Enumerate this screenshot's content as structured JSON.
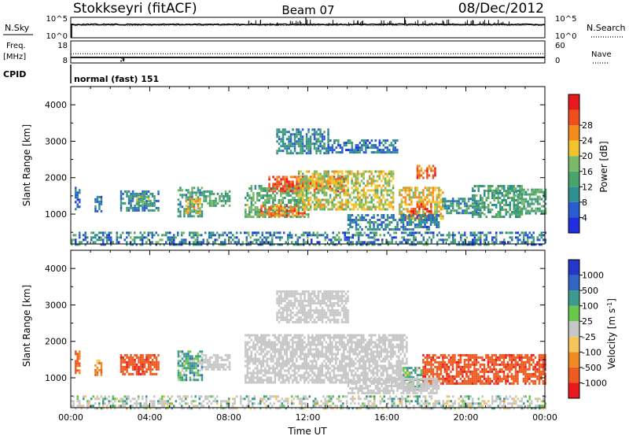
{
  "header": {
    "station": "Stokkseyri (fitACF)",
    "beam": "Beam 07",
    "date": "08/Dec/2012"
  },
  "chart_data": [
    {
      "type": "line",
      "panel": "noise",
      "left_label": "N.Sky",
      "right_label": "N.Search",
      "left_ticks": [
        "10^5",
        "10^0"
      ],
      "right_ticks": [
        "10^5",
        "10^0"
      ],
      "yscale": "log",
      "ylim": [
        1,
        100000
      ]
    },
    {
      "type": "line",
      "panel": "frequency",
      "left_label": "Freq.",
      "left_unit": "[MHz]",
      "right_label": "Nave",
      "left_ticks": [
        18,
        8
      ],
      "right_ticks": [
        60,
        0
      ],
      "freq_mhz": 10.5,
      "nave": 25
    },
    {
      "type": "table",
      "panel": "cpid",
      "label": "CPID",
      "mode": "normal (fast) 151"
    },
    {
      "type": "heatmap",
      "panel": "power",
      "xlabel": "",
      "ylabel": "Slant Range [km]",
      "xlim": [
        0,
        24
      ],
      "ylim": [
        180,
        4500
      ],
      "yticks": [
        1000,
        2000,
        3000,
        4000
      ],
      "colorbar_label": "Power [dB]",
      "colorbar_ticks": [
        4,
        8,
        12,
        16,
        20,
        24,
        28
      ],
      "clim": [
        0,
        32
      ],
      "colors": [
        "#1f2fe0",
        "#2a5bd0",
        "#2f8f8f",
        "#49a36b",
        "#7ab86a",
        "#f0c42a",
        "#f28c1e",
        "#ef4f1c",
        "#e8191c"
      ],
      "echo_regions": [
        {
          "t": [
            0.2,
            0.4
          ],
          "r": [
            1150,
            1750
          ],
          "p": 6
        },
        {
          "t": [
            1.2,
            1.5
          ],
          "r": [
            1050,
            1500
          ],
          "p": 7
        },
        {
          "t": [
            2.5,
            4.4
          ],
          "r": [
            1100,
            1650
          ],
          "p": 9
        },
        {
          "t": [
            3.3,
            3.9
          ],
          "r": [
            1250,
            1500
          ],
          "p": 15
        },
        {
          "t": [
            5.4,
            6.6
          ],
          "r": [
            950,
            1750
          ],
          "p": 11
        },
        {
          "t": [
            5.8,
            6.5
          ],
          "r": [
            1050,
            1450
          ],
          "p": 20
        },
        {
          "t": [
            6.7,
            8.0
          ],
          "r": [
            1200,
            1650
          ],
          "p": 13
        },
        {
          "t": [
            8.8,
            12.0
          ],
          "r": [
            900,
            1800
          ],
          "p": 14
        },
        {
          "t": [
            9.6,
            11.8
          ],
          "r": [
            950,
            1250
          ],
          "p": 25
        },
        {
          "t": [
            10.0,
            13.8
          ],
          "r": [
            1600,
            2050
          ],
          "p": 27
        },
        {
          "t": [
            11.5,
            16.3
          ],
          "r": [
            1100,
            2200
          ],
          "p": 18
        },
        {
          "t": [
            10.4,
            13.0
          ],
          "r": [
            2700,
            3350
          ],
          "p": 9
        },
        {
          "t": [
            13.0,
            16.5
          ],
          "r": [
            2700,
            3050
          ],
          "p": 7
        },
        {
          "t": [
            16.6,
            18.8
          ],
          "r": [
            850,
            1750
          ],
          "p": 20
        },
        {
          "t": [
            17.2,
            18.2
          ],
          "r": [
            900,
            1300
          ],
          "p": 27
        },
        {
          "t": [
            17.5,
            18.4
          ],
          "r": [
            2000,
            2350
          ],
          "p": 25
        },
        {
          "t": [
            18.8,
            20.8
          ],
          "r": [
            1000,
            1450
          ],
          "p": 10
        },
        {
          "t": [
            20.3,
            22.8
          ],
          "r": [
            950,
            1800
          ],
          "p": 12
        },
        {
          "t": [
            22.4,
            24.0
          ],
          "r": [
            1050,
            1700
          ],
          "p": 13
        },
        {
          "t": [
            14.0,
            18.6
          ],
          "r": [
            600,
            1000
          ],
          "p": 8
        }
      ]
    },
    {
      "type": "heatmap",
      "panel": "velocity",
      "xlabel": "Time UT",
      "ylabel": "Slant Range [km]",
      "xlim": [
        0,
        24
      ],
      "ylim": [
        180,
        4500
      ],
      "xticks": [
        "00:00",
        "04:00",
        "08:00",
        "12:00",
        "16:00",
        "20:00",
        "00:00"
      ],
      "yticks": [
        1000,
        2000,
        3000,
        4000
      ],
      "colorbar_label": "Velocity [m s^-1]",
      "colorbar_ticks": [
        1000,
        500,
        100,
        25,
        -25,
        -100,
        -500,
        -1000
      ],
      "colors": [
        "#2437c8",
        "#3266c4",
        "#3c9b8c",
        "#69c74c",
        "#c7c7c7",
        "#f4c65c",
        "#f08a22",
        "#ee5a20",
        "#e8191c"
      ],
      "echo_regions": [
        {
          "t": [
            0.2,
            0.4
          ],
          "r": [
            1150,
            1750
          ],
          "v": -300
        },
        {
          "t": [
            1.2,
            1.5
          ],
          "r": [
            1050,
            1500
          ],
          "v": -200
        },
        {
          "t": [
            2.5,
            4.4
          ],
          "r": [
            1100,
            1650
          ],
          "v": -400
        },
        {
          "t": [
            5.4,
            6.6
          ],
          "r": [
            950,
            1750
          ],
          "v": 120
        },
        {
          "t": [
            6.6,
            8.0
          ],
          "r": [
            1250,
            1650
          ],
          "v": 0
        },
        {
          "t": [
            8.8,
            17.0
          ],
          "r": [
            850,
            2200
          ],
          "v": 0
        },
        {
          "t": [
            10.4,
            14.0
          ],
          "r": [
            2500,
            3400
          ],
          "v": 0
        },
        {
          "t": [
            16.8,
            17.8
          ],
          "r": [
            700,
            1300
          ],
          "v": 100
        },
        {
          "t": [
            17.8,
            24.0
          ],
          "r": [
            850,
            1650
          ],
          "v": -400
        },
        {
          "t": [
            14.0,
            18.6
          ],
          "r": [
            600,
            1000
          ],
          "v": 0
        }
      ]
    }
  ]
}
